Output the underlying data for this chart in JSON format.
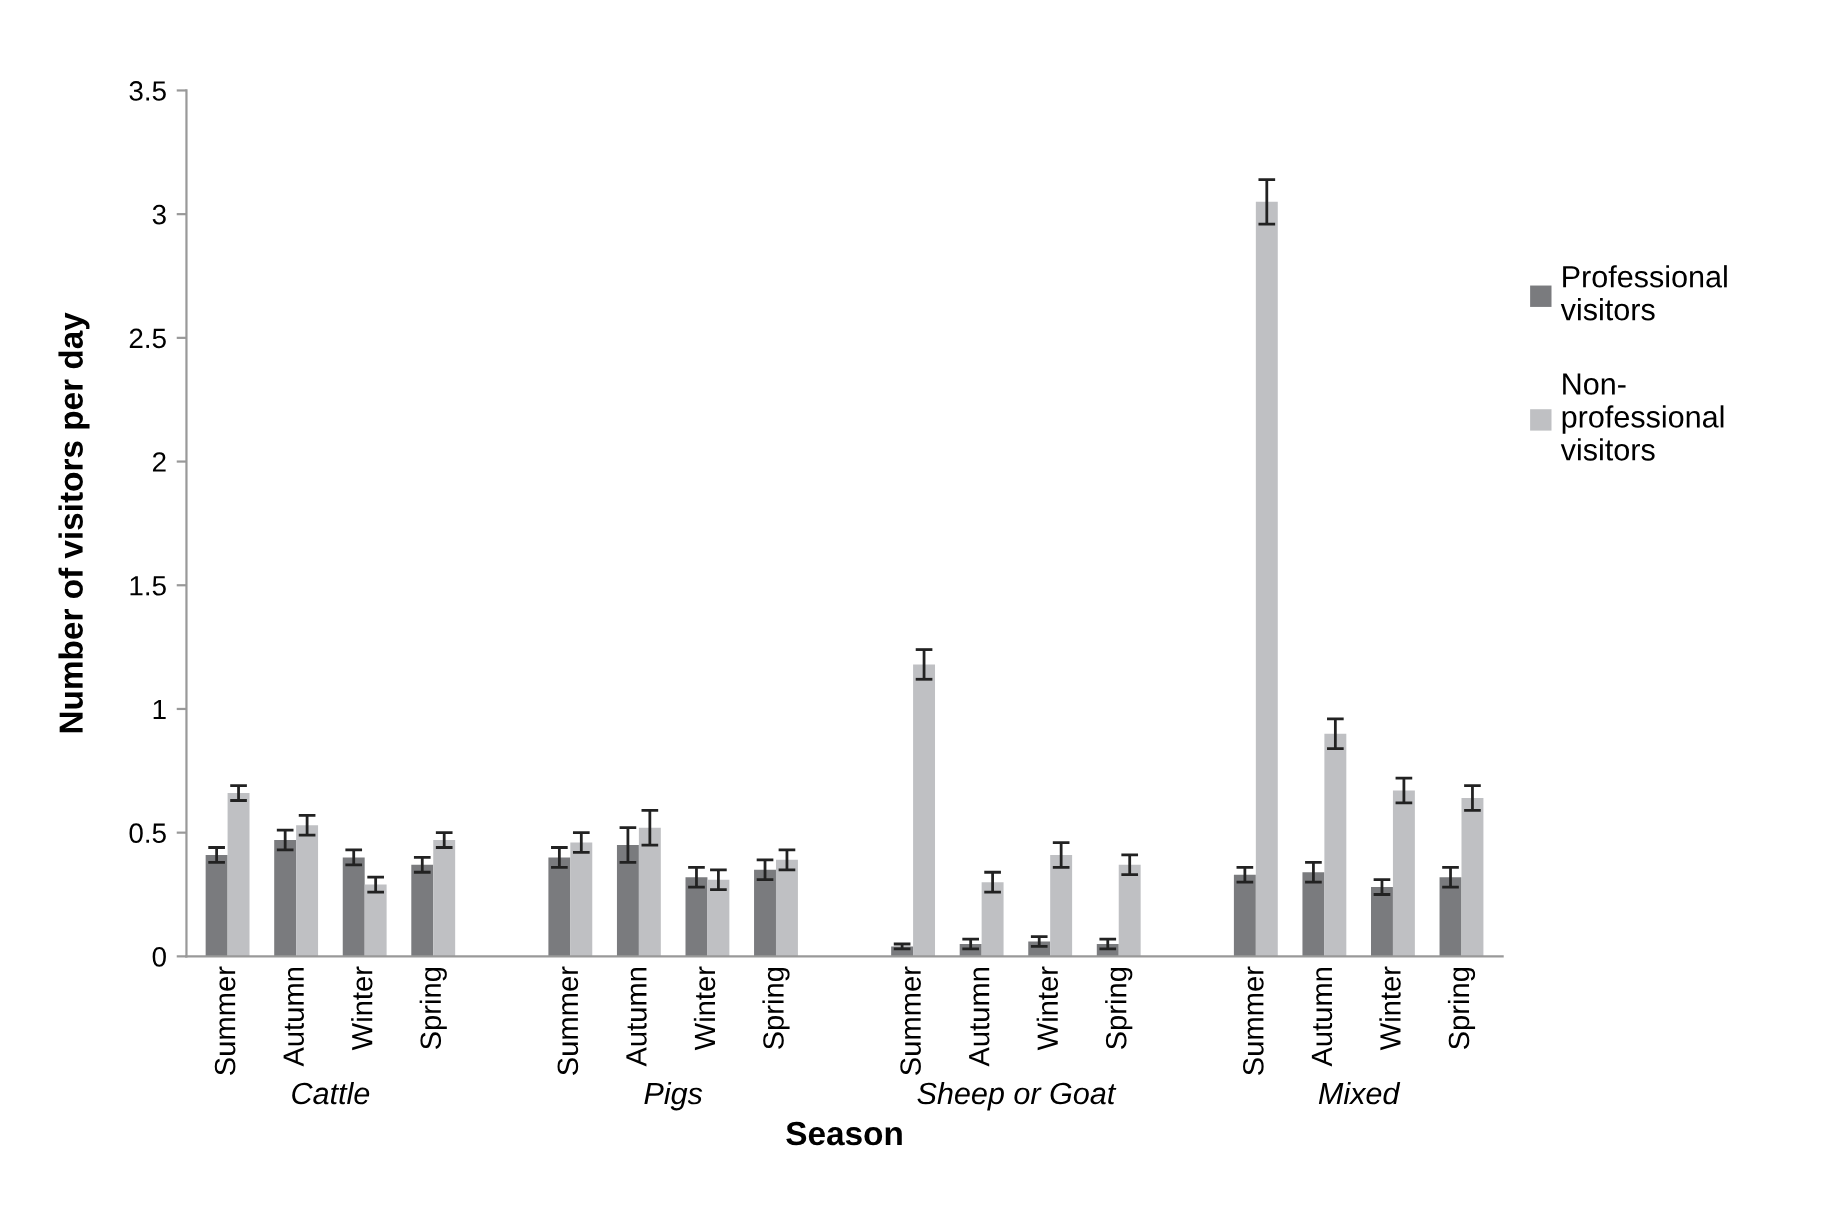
{
  "chart_data": {
    "type": "bar",
    "xlabel": "Season",
    "ylabel": "Number of visitors per day",
    "categories": [
      "Summer",
      "Autumn",
      "Winter",
      "Spring",
      null,
      "Summer",
      "Autumn",
      "Winter",
      "Spring",
      null,
      "Summer",
      "Autumn",
      "Winter",
      "Spring",
      null,
      "Summer",
      "Autumn",
      "Winter",
      "Spring"
    ],
    "series": [
      {
        "name": "Professional\nvisitors",
        "color": "#7a7b7e",
        "values": [
          0.41,
          0.47,
          0.4,
          0.37,
          null,
          0.4,
          0.45,
          0.32,
          0.35,
          null,
          0.04,
          0.05,
          0.06,
          0.05,
          null,
          0.33,
          0.34,
          0.28,
          0.32
        ],
        "errors": [
          0.03,
          0.04,
          0.03,
          0.03,
          null,
          0.04,
          0.07,
          0.04,
          0.04,
          null,
          0.01,
          0.02,
          0.02,
          0.02,
          null,
          0.03,
          0.04,
          0.03,
          0.04
        ]
      },
      {
        "name": "Non-\nprofessional\nvisitors",
        "color": "#bfc0c3",
        "values": [
          0.66,
          0.53,
          0.29,
          0.47,
          null,
          0.46,
          0.52,
          0.31,
          0.39,
          null,
          1.18,
          0.3,
          0.41,
          0.37,
          null,
          3.05,
          0.9,
          0.67,
          0.64
        ],
        "errors": [
          0.03,
          0.04,
          0.03,
          0.03,
          null,
          0.04,
          0.07,
          0.04,
          0.04,
          null,
          0.06,
          0.04,
          0.05,
          0.04,
          null,
          0.09,
          0.06,
          0.05,
          0.05
        ]
      }
    ],
    "annotations": [
      "Cattle",
      "Pigs",
      "Sheep or Goat",
      "Mixed"
    ],
    "ylim": [
      0,
      3.5
    ],
    "yticks": [
      0,
      0.5,
      1,
      1.5,
      2,
      2.5,
      3,
      3.5
    ],
    "grid": false,
    "legend": "right"
  }
}
